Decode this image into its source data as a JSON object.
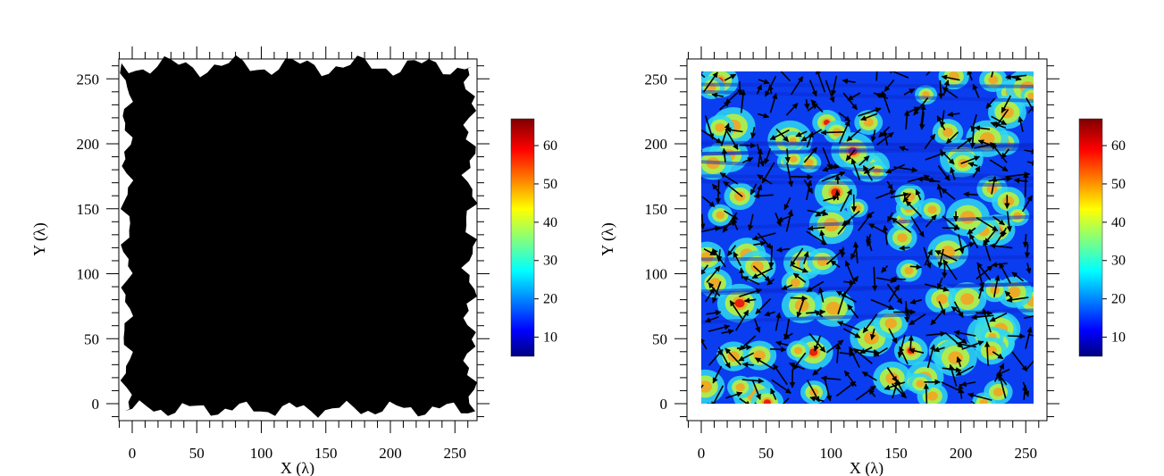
{
  "chart_data": [
    {
      "type": "heatmap",
      "title": "",
      "xlabel": "X (λ)",
      "ylabel": "Y (λ)",
      "xlim": [
        -10,
        265
      ],
      "ylim": [
        -12,
        265
      ],
      "x_ticks": [
        0,
        50,
        100,
        150,
        200,
        250
      ],
      "y_ticks": [
        0,
        50,
        100,
        150,
        200,
        250
      ],
      "x_tick_labels": [
        "0",
        "50",
        "100",
        "150",
        "200",
        "250"
      ],
      "y_tick_labels": [
        "0",
        "50",
        "100",
        "150",
        "200",
        "250"
      ],
      "grid": false,
      "content": "dense black quiver arrows covering the whole domain",
      "fill_color": "#000000",
      "colorbar": {
        "colormap": "jet",
        "range": [
          5,
          67
        ],
        "ticks": [
          10,
          20,
          30,
          40,
          50,
          60
        ],
        "tick_labels": [
          "10",
          "20",
          "30",
          "40",
          "50",
          "60"
        ]
      }
    },
    {
      "type": "heatmap",
      "title": "",
      "xlabel": "X (λ)",
      "ylabel": "Y (λ)",
      "xlim": [
        -10,
        265
      ],
      "ylim": [
        -12,
        265
      ],
      "x_ticks": [
        0,
        50,
        100,
        150,
        200,
        250
      ],
      "y_ticks": [
        0,
        50,
        100,
        150,
        200,
        250
      ],
      "x_tick_labels": [
        "0",
        "50",
        "100",
        "150",
        "200",
        "250"
      ],
      "y_tick_labels": [
        "0",
        "50",
        "100",
        "150",
        "200",
        "250"
      ],
      "grid": false,
      "content": "intensity map (0–256 × 0–256) with overlaid black direction arrows",
      "colorbar": {
        "colormap": "jet",
        "range": [
          5,
          67
        ],
        "ticks": [
          10,
          20,
          30,
          40,
          50,
          60
        ],
        "tick_labels": [
          "10",
          "20",
          "30",
          "40",
          "50",
          "60"
        ]
      }
    }
  ]
}
